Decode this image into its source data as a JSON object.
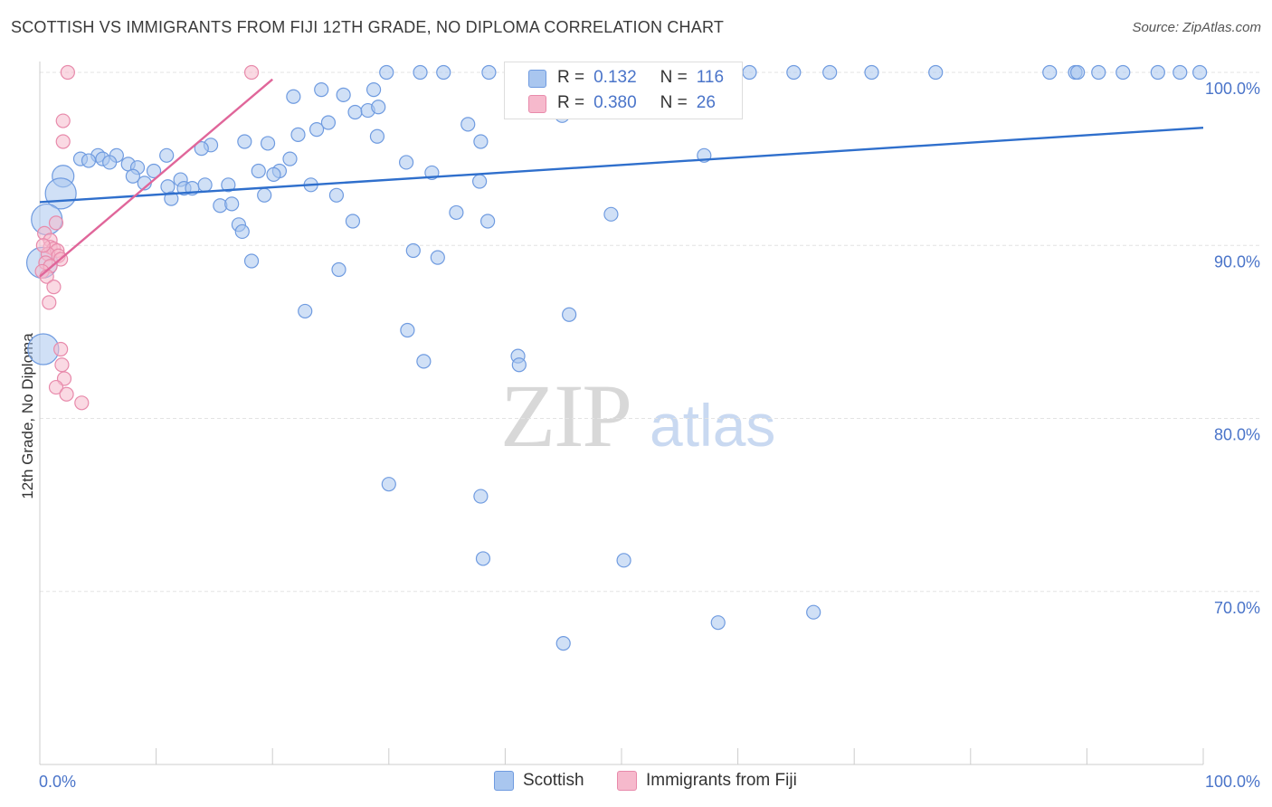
{
  "title": "SCOTTISH VS IMMIGRANTS FROM FIJI 12TH GRADE, NO DIPLOMA CORRELATION CHART",
  "source": "Source: ZipAtlas.com",
  "watermark_zip": "ZIP",
  "watermark_atlas": "atlas",
  "legend": {
    "row1": {
      "r_label": "R =",
      "r_value": "0.132",
      "n_label": "N =",
      "n_value": "116"
    },
    "row2": {
      "r_label": "R =",
      "r_value": "0.380",
      "n_label": "N =",
      "n_value": "26"
    }
  },
  "colors": {
    "blue_fill": "#a9c6ef",
    "blue_stroke": "#6f9be0",
    "blue_line": "#2f6fcc",
    "pink_fill": "#f6b9cc",
    "pink_stroke": "#e88aab",
    "pink_line": "#e0669a",
    "tick_label": "#4a74c9",
    "grid": "#e3e3e3"
  },
  "chart_data": {
    "type": "scatter",
    "title": "SCOTTISH VS IMMIGRANTS FROM FIJI 12TH GRADE, NO DIPLOMA CORRELATION CHART",
    "xlabel": "",
    "ylabel": "12th Grade, No Diploma",
    "xlim": [
      0,
      100
    ],
    "ylim": [
      60,
      100
    ],
    "x_tick_labels": [
      "0.0%",
      "100.0%"
    ],
    "y_ticks": [
      70,
      80,
      90,
      100
    ],
    "y_tick_labels": [
      "70.0%",
      "80.0%",
      "90.0%",
      "100.0%"
    ],
    "grid": true,
    "legend_position": "top-center",
    "series": [
      {
        "name": "Scottish",
        "color": "#a9c6ef",
        "trend": {
          "x": [
            0,
            100
          ],
          "y": [
            92.5,
            96.8
          ]
        },
        "points": [
          [
            29.8,
            100.0,
            1
          ],
          [
            32.7,
            100.0,
            1
          ],
          [
            34.7,
            100.0,
            1
          ],
          [
            38.6,
            100.0,
            1
          ],
          [
            41.9,
            100.0,
            1
          ],
          [
            44.8,
            100.0,
            1
          ],
          [
            48.4,
            100.0,
            1
          ],
          [
            52.3,
            100.0,
            1
          ],
          [
            54.9,
            100.0,
            1
          ],
          [
            58.8,
            100.0,
            1
          ],
          [
            61.0,
            100.0,
            1
          ],
          [
            64.8,
            100.0,
            1
          ],
          [
            67.9,
            100.0,
            1
          ],
          [
            71.5,
            100.0,
            1
          ],
          [
            77.0,
            100.0,
            1
          ],
          [
            86.8,
            100.0,
            1
          ],
          [
            89.0,
            100.0,
            1
          ],
          [
            89.2,
            100.0,
            1
          ],
          [
            91.0,
            100.0,
            1
          ],
          [
            93.1,
            100.0,
            1
          ],
          [
            96.1,
            100.0,
            1
          ],
          [
            98.0,
            100.0,
            1
          ],
          [
            99.7,
            100.0,
            1
          ],
          [
            21.8,
            98.6,
            1
          ],
          [
            24.2,
            99.0,
            1
          ],
          [
            26.1,
            98.7,
            1
          ],
          [
            28.7,
            99.0,
            1
          ],
          [
            27.1,
            97.7,
            1
          ],
          [
            28.2,
            97.8,
            1
          ],
          [
            29.1,
            98.0,
            1
          ],
          [
            24.8,
            97.1,
            1
          ],
          [
            23.8,
            96.7,
            1
          ],
          [
            22.2,
            96.4,
            1
          ],
          [
            29.0,
            96.3,
            1
          ],
          [
            17.6,
            96.0,
            1
          ],
          [
            19.6,
            95.9,
            1
          ],
          [
            14.7,
            95.8,
            1
          ],
          [
            13.9,
            95.6,
            1
          ],
          [
            36.8,
            97.0,
            1
          ],
          [
            37.9,
            96.0,
            1
          ],
          [
            44.9,
            97.5,
            1
          ],
          [
            45.0,
            98.5,
            1
          ],
          [
            57.1,
            95.2,
            1
          ],
          [
            10.9,
            95.2,
            1
          ],
          [
            5.0,
            95.2,
            1
          ],
          [
            5.4,
            95.0,
            1
          ],
          [
            6.6,
            95.2,
            1
          ],
          [
            3.5,
            95.0,
            1
          ],
          [
            4.2,
            94.9,
            1
          ],
          [
            7.6,
            94.7,
            1
          ],
          [
            6.0,
            94.8,
            1
          ],
          [
            8.4,
            94.5,
            1
          ],
          [
            9.8,
            94.3,
            1
          ],
          [
            18.8,
            94.3,
            1
          ],
          [
            20.6,
            94.3,
            1
          ],
          [
            20.1,
            94.1,
            1
          ],
          [
            21.5,
            95.0,
            1
          ],
          [
            31.5,
            94.8,
            1
          ],
          [
            33.7,
            94.2,
            1
          ],
          [
            8.0,
            94.0,
            1
          ],
          [
            9.0,
            93.6,
            1
          ],
          [
            11.0,
            93.4,
            1
          ],
          [
            12.1,
            93.8,
            1
          ],
          [
            12.4,
            93.3,
            1
          ],
          [
            13.1,
            93.3,
            1
          ],
          [
            14.2,
            93.5,
            1
          ],
          [
            16.2,
            93.5,
            1
          ],
          [
            23.3,
            93.5,
            1
          ],
          [
            25.5,
            92.9,
            1
          ],
          [
            19.3,
            92.9,
            1
          ],
          [
            11.3,
            92.7,
            1
          ],
          [
            15.5,
            92.3,
            1
          ],
          [
            16.5,
            92.4,
            1
          ],
          [
            37.8,
            93.7,
            1
          ],
          [
            35.8,
            91.9,
            1
          ],
          [
            38.5,
            91.4,
            1
          ],
          [
            49.1,
            91.8,
            1
          ],
          [
            17.1,
            91.2,
            1
          ],
          [
            17.4,
            90.8,
            1
          ],
          [
            26.9,
            91.4,
            1
          ],
          [
            32.1,
            89.7,
            1
          ],
          [
            34.2,
            89.3,
            1
          ],
          [
            18.2,
            89.1,
            1
          ],
          [
            25.7,
            88.6,
            1
          ],
          [
            22.8,
            86.2,
            1
          ],
          [
            45.5,
            86.0,
            1
          ],
          [
            31.6,
            85.1,
            1
          ],
          [
            41.1,
            83.6,
            1
          ],
          [
            41.2,
            83.1,
            1
          ],
          [
            33.0,
            83.3,
            1
          ],
          [
            30.0,
            76.2,
            1
          ],
          [
            37.9,
            75.5,
            1
          ],
          [
            38.1,
            71.9,
            1
          ],
          [
            50.2,
            71.8,
            1
          ],
          [
            58.3,
            68.2,
            1
          ],
          [
            66.5,
            68.8,
            1
          ],
          [
            45.0,
            67.0,
            1
          ],
          [
            2.0,
            94.0,
            2
          ],
          [
            1.8,
            93.0,
            3
          ],
          [
            0.6,
            91.5,
            3
          ],
          [
            0.2,
            89.0,
            3
          ],
          [
            0.3,
            84.0,
            3
          ]
        ]
      },
      {
        "name": "Immigrants from Fiji",
        "color": "#f6b9cc",
        "trend": {
          "x": [
            0,
            20
          ],
          "y": [
            88.2,
            99.6
          ]
        },
        "points": [
          [
            2.4,
            100.0,
            1
          ],
          [
            18.2,
            100.0,
            1
          ],
          [
            2.0,
            97.2,
            1
          ],
          [
            2.0,
            96.0,
            1
          ],
          [
            1.4,
            91.3,
            1
          ],
          [
            0.4,
            90.7,
            1
          ],
          [
            0.9,
            90.3,
            1
          ],
          [
            0.9,
            89.9,
            1
          ],
          [
            1.2,
            89.8,
            1
          ],
          [
            1.5,
            89.7,
            1
          ],
          [
            0.7,
            89.5,
            1
          ],
          [
            1.6,
            89.4,
            1
          ],
          [
            1.8,
            89.2,
            1
          ],
          [
            0.5,
            89.0,
            1
          ],
          [
            0.9,
            88.8,
            1
          ],
          [
            0.2,
            88.5,
            1
          ],
          [
            0.6,
            88.2,
            1
          ],
          [
            1.2,
            87.6,
            1
          ],
          [
            0.8,
            86.7,
            1
          ],
          [
            1.8,
            84.0,
            1
          ],
          [
            1.9,
            83.1,
            1
          ],
          [
            2.1,
            82.3,
            1
          ],
          [
            1.4,
            81.8,
            1
          ],
          [
            2.3,
            81.4,
            1
          ],
          [
            3.6,
            80.9,
            1
          ],
          [
            0.3,
            90.0,
            1
          ]
        ]
      }
    ]
  },
  "bottom_legend": {
    "blue_label": "Scottish",
    "pink_label": "Immigrants from Fiji"
  }
}
